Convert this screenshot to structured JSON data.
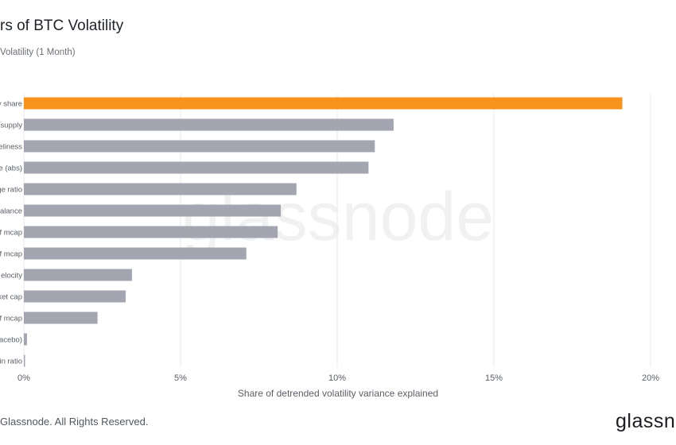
{
  "title": "rs of BTC Volatility",
  "subtitle": "Volatility (1 Month)",
  "footer": "Glassnode. All Rights Reserved.",
  "logo_text": "glassn",
  "watermark": "glassnode",
  "colors": {
    "highlight": "#f7931a",
    "bar": "#a3a6b1",
    "grid": "#e8e9ec",
    "text": "#5b6068"
  },
  "chart_data": {
    "type": "bar",
    "orientation": "horizontal",
    "categories": [
      "y share",
      "supply",
      "eliness",
      "e (abs)",
      "ge ratio",
      "alance",
      "f mcap",
      "f mcap",
      "elocity",
      "ket cap",
      "f mcap",
      "acebo)",
      "in ratio"
    ],
    "values": [
      19.1,
      11.8,
      11.2,
      11.0,
      8.7,
      8.2,
      8.1,
      7.1,
      3.45,
      3.25,
      2.35,
      0.1,
      0.02
    ],
    "highlight_index": 0,
    "xlabel": "Share of detrended volatility variance explained",
    "ylabel": "",
    "xlim": [
      0,
      20
    ],
    "xticks": [
      0,
      5,
      10,
      15,
      20
    ],
    "xtick_labels": [
      "0%",
      "5%",
      "10%",
      "15%",
      "20%"
    ],
    "grid": true,
    "grid_axis": "x"
  }
}
